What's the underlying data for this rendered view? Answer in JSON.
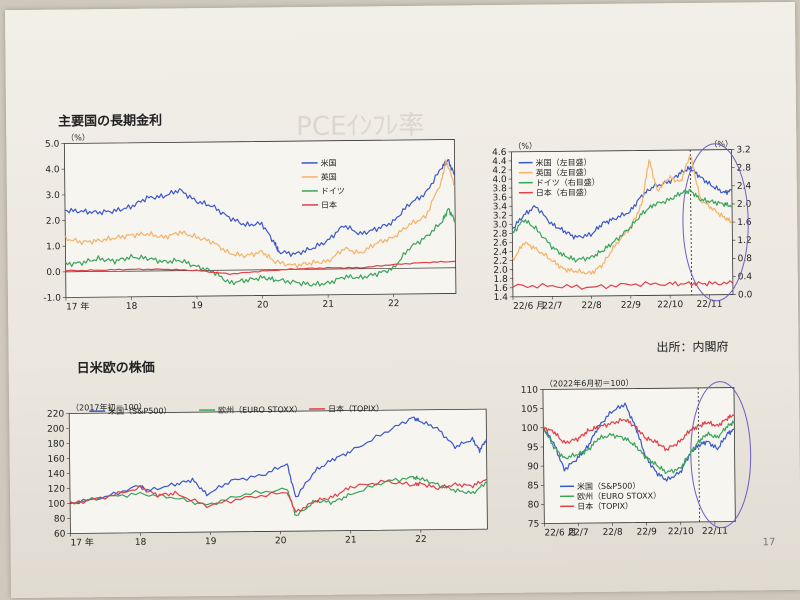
{
  "page": {
    "section1_title": "主要国の長期金利",
    "section2_title": "日米欧の株価",
    "source": "出所：内閣府",
    "page_number": "17"
  },
  "colors": {
    "us": "#3a58c8",
    "uk": "#f4b26a",
    "de": "#3aa35c",
    "jp": "#e0404a"
  },
  "chart_data": [
    {
      "id": "rates_long",
      "type": "line",
      "title": "",
      "unit": "（%）",
      "ylim": [
        -1.0,
        5.0
      ],
      "yticks": [
        "5.0",
        "4.0",
        "3.0",
        "2.0",
        "1.0",
        "0.0",
        "-1.0"
      ],
      "xlim": [
        2017.0,
        2022.95
      ],
      "xticks": [
        {
          "x": 2017.0,
          "label": "17 年"
        },
        {
          "x": 2018.0,
          "label": "18"
        },
        {
          "x": 2019.0,
          "label": "19"
        },
        {
          "x": 2020.0,
          "label": "20"
        },
        {
          "x": 2021.0,
          "label": "21"
        },
        {
          "x": 2022.0,
          "label": "22"
        }
      ],
      "zero_line": 0,
      "legend": [
        "米国",
        "英国",
        "ドイツ",
        "日本"
      ],
      "series": [
        {
          "name": "米国",
          "color": "#3a58c8",
          "x": [
            2017.0,
            2017.25,
            2017.5,
            2017.75,
            2018.0,
            2018.25,
            2018.5,
            2018.75,
            2019.0,
            2019.25,
            2019.5,
            2019.75,
            2020.0,
            2020.2,
            2020.25,
            2020.5,
            2020.75,
            2021.0,
            2021.25,
            2021.5,
            2021.75,
            2022.0,
            2022.25,
            2022.5,
            2022.75,
            2022.85,
            2022.95
          ],
          "y": [
            2.4,
            2.35,
            2.3,
            2.35,
            2.5,
            2.85,
            2.9,
            3.15,
            2.7,
            2.5,
            2.05,
            1.75,
            1.8,
            1.0,
            0.7,
            0.6,
            0.8,
            1.1,
            1.7,
            1.35,
            1.55,
            1.8,
            2.5,
            2.9,
            3.9,
            4.2,
            3.6
          ]
        },
        {
          "name": "英国",
          "color": "#f4b26a",
          "x": [
            2017.0,
            2017.25,
            2017.5,
            2017.75,
            2018.0,
            2018.25,
            2018.5,
            2018.75,
            2019.0,
            2019.25,
            2019.5,
            2019.75,
            2020.0,
            2020.2,
            2020.5,
            2020.75,
            2021.0,
            2021.25,
            2021.5,
            2021.75,
            2022.0,
            2022.25,
            2022.5,
            2022.75,
            2022.82,
            2022.95
          ],
          "y": [
            1.3,
            1.15,
            1.2,
            1.3,
            1.4,
            1.45,
            1.3,
            1.5,
            1.3,
            1.1,
            0.65,
            0.55,
            0.7,
            0.3,
            0.15,
            0.25,
            0.3,
            0.8,
            0.6,
            1.0,
            1.2,
            1.7,
            2.0,
            3.4,
            4.2,
            3.2
          ]
        },
        {
          "name": "ドイツ",
          "color": "#3aa35c",
          "x": [
            2017.0,
            2017.25,
            2017.5,
            2017.75,
            2018.0,
            2018.25,
            2018.5,
            2018.75,
            2019.0,
            2019.25,
            2019.5,
            2019.75,
            2020.0,
            2020.2,
            2020.5,
            2020.75,
            2021.0,
            2021.25,
            2021.5,
            2021.75,
            2022.0,
            2022.25,
            2022.5,
            2022.75,
            2022.85,
            2022.95
          ],
          "y": [
            0.3,
            0.35,
            0.5,
            0.4,
            0.55,
            0.5,
            0.35,
            0.4,
            0.15,
            -0.05,
            -0.5,
            -0.4,
            -0.3,
            -0.4,
            -0.5,
            -0.6,
            -0.55,
            -0.3,
            -0.35,
            -0.2,
            0.0,
            0.8,
            1.2,
            1.8,
            2.3,
            1.8
          ]
        },
        {
          "name": "日本",
          "color": "#e0404a",
          "x": [
            2017.0,
            2017.5,
            2018.0,
            2018.5,
            2019.0,
            2019.5,
            2020.0,
            2020.5,
            2021.0,
            2021.5,
            2022.0,
            2022.5,
            2022.95
          ],
          "y": [
            0.05,
            0.05,
            0.07,
            0.06,
            0.0,
            -0.15,
            -0.05,
            0.02,
            0.05,
            0.04,
            0.15,
            0.22,
            0.25
          ]
        }
      ]
    },
    {
      "id": "rates_recent",
      "type": "line",
      "title": "",
      "unit_left": "（%）",
      "unit_right": "（%）",
      "ylim_left": [
        1.4,
        4.6
      ],
      "yticks_left": [
        "4.6",
        "4.4",
        "4.2",
        "4.0",
        "3.8",
        "3.6",
        "3.4",
        "3.2",
        "3.0",
        "2.8",
        "2.6",
        "2.4",
        "2.2",
        "2.0",
        "1.8",
        "1.6",
        "1.4"
      ],
      "ylim_right": [
        0.0,
        3.2
      ],
      "yticks_right": [
        "3.2",
        "2.8",
        "2.4",
        "2.0",
        "1.6",
        "1.2",
        "0.8",
        "0.4",
        "0.0"
      ],
      "xlim": [
        0,
        5.6
      ],
      "xticks": [
        {
          "x": 0,
          "label": "22/6 月"
        },
        {
          "x": 1,
          "label": "22/7"
        },
        {
          "x": 2,
          "label": "22/8"
        },
        {
          "x": 3,
          "label": "22/9"
        },
        {
          "x": 4,
          "label": "22/10"
        },
        {
          "x": 5,
          "label": "22/11"
        }
      ],
      "vline_x": 4.55,
      "legend": [
        "米国（左目盛）",
        "英国（左目盛）",
        "ドイツ（右目盛）",
        "日本（右目盛）"
      ],
      "series": [
        {
          "name": "米国（左目盛）",
          "axis": "left",
          "color": "#3a58c8",
          "x": [
            0,
            0.3,
            0.6,
            1,
            1.3,
            1.6,
            2,
            2.3,
            2.6,
            3,
            3.3,
            3.6,
            4,
            4.3,
            4.55,
            4.8,
            5.1,
            5.4,
            5.6
          ],
          "y": [
            2.9,
            3.2,
            3.4,
            3.0,
            2.85,
            2.7,
            2.75,
            3.0,
            3.1,
            3.25,
            3.6,
            3.8,
            3.9,
            4.1,
            4.2,
            4.0,
            3.8,
            3.65,
            3.7
          ]
        },
        {
          "name": "英国（左目盛）",
          "axis": "left",
          "color": "#f4b26a",
          "x": [
            0,
            0.3,
            0.6,
            1,
            1.3,
            1.6,
            2,
            2.3,
            2.6,
            3,
            3.3,
            3.5,
            3.7,
            4,
            4.3,
            4.55,
            4.8,
            5.1,
            5.4,
            5.6
          ],
          "y": [
            2.2,
            2.6,
            2.45,
            2.2,
            2.0,
            1.95,
            1.9,
            2.1,
            2.5,
            2.9,
            3.4,
            4.4,
            3.7,
            4.0,
            3.9,
            4.5,
            3.5,
            3.3,
            3.1,
            3.0
          ]
        },
        {
          "name": "ドイツ（右目盛）",
          "axis": "right",
          "color": "#3aa35c",
          "x": [
            0,
            0.3,
            0.6,
            1,
            1.3,
            1.6,
            2,
            2.3,
            2.6,
            3,
            3.3,
            3.6,
            4,
            4.3,
            4.55,
            4.8,
            5.1,
            5.4,
            5.6
          ],
          "y": [
            1.4,
            1.7,
            1.5,
            1.1,
            0.9,
            0.8,
            0.85,
            1.0,
            1.2,
            1.5,
            1.8,
            2.0,
            2.1,
            2.25,
            2.3,
            2.1,
            2.05,
            2.0,
            1.95
          ]
        },
        {
          "name": "日本（右目盛）",
          "axis": "right",
          "color": "#e0404a",
          "x": [
            0,
            1,
            2,
            3,
            4,
            4.55,
            5,
            5.6
          ],
          "y": [
            0.24,
            0.23,
            0.19,
            0.25,
            0.25,
            0.25,
            0.25,
            0.25
          ]
        }
      ]
    },
    {
      "id": "stocks_long",
      "type": "line",
      "title": "",
      "unit": "（2017年初＝100）",
      "ylim": [
        60,
        220
      ],
      "yticks": [
        "220",
        "200",
        "180",
        "160",
        "140",
        "120",
        "100",
        "80",
        "60"
      ],
      "xlim": [
        2017.0,
        2022.95
      ],
      "xticks": [
        {
          "x": 2017.0,
          "label": "17 年"
        },
        {
          "x": 2018.0,
          "label": "18"
        },
        {
          "x": 2019.0,
          "label": "19"
        },
        {
          "x": 2020.0,
          "label": "20"
        },
        {
          "x": 2021.0,
          "label": "21"
        },
        {
          "x": 2022.0,
          "label": "22"
        }
      ],
      "legend": [
        "米国（S&P500）",
        "欧州（EURO STOXX）",
        "日本（TOPIX）"
      ],
      "series": [
        {
          "name": "米国（S&P500）",
          "color": "#3a58c8",
          "x": [
            2017.0,
            2017.5,
            2018.0,
            2018.1,
            2018.5,
            2018.75,
            2018.95,
            2019.3,
            2019.75,
            2020.1,
            2020.22,
            2020.5,
            2020.75,
            2021.0,
            2021.5,
            2021.9,
            2022.0,
            2022.25,
            2022.5,
            2022.75,
            2022.85,
            2022.95
          ],
          "y": [
            100,
            108,
            123,
            116,
            124,
            130,
            110,
            128,
            135,
            150,
            105,
            140,
            155,
            165,
            190,
            210,
            205,
            195,
            170,
            180,
            165,
            180
          ]
        },
        {
          "name": "欧州（EURO STOXX）",
          "color": "#3aa35c",
          "x": [
            2017.0,
            2017.5,
            2018.0,
            2018.5,
            2018.95,
            2019.5,
            2020.1,
            2020.22,
            2020.5,
            2020.75,
            2021.0,
            2021.5,
            2021.9,
            2022.0,
            2022.25,
            2022.5,
            2022.75,
            2022.95
          ],
          "y": [
            100,
            108,
            112,
            106,
            96,
            110,
            116,
            80,
            100,
            98,
            108,
            125,
            130,
            128,
            120,
            112,
            108,
            123
          ]
        },
        {
          "name": "日本（TOPIX）",
          "color": "#e0404a",
          "x": [
            2017.0,
            2017.5,
            2018.0,
            2018.25,
            2018.5,
            2018.95,
            2019.5,
            2020.1,
            2020.22,
            2020.5,
            2020.75,
            2021.0,
            2021.5,
            2021.9,
            2022.0,
            2022.25,
            2022.5,
            2022.75,
            2022.95
          ],
          "y": [
            100,
            108,
            120,
            110,
            112,
            95,
            105,
            112,
            85,
            100,
            105,
            118,
            125,
            120,
            122,
            115,
            120,
            118,
            127
          ]
        }
      ]
    },
    {
      "id": "stocks_recent",
      "type": "line",
      "title": "",
      "unit": "（2022年6月初＝100）",
      "ylim": [
        75,
        110
      ],
      "yticks": [
        "110",
        "105",
        "100",
        "95",
        "90",
        "85",
        "80",
        "75"
      ],
      "xlim": [
        0,
        5.6
      ],
      "xticks": [
        {
          "x": 0,
          "label": "22/6 月"
        },
        {
          "x": 1,
          "label": "22/7"
        },
        {
          "x": 2,
          "label": "22/8"
        },
        {
          "x": 3,
          "label": "22/9"
        },
        {
          "x": 4,
          "label": "22/10"
        },
        {
          "x": 5,
          "label": "22/11"
        }
      ],
      "vline_x": 4.55,
      "legend": [
        "米国（S&P500）",
        "欧州（EURO STOXX）",
        "日本（TOPIX）"
      ],
      "series": [
        {
          "name": "米国（S&P500）",
          "color": "#3a58c8",
          "x": [
            0,
            0.3,
            0.6,
            1,
            1.3,
            1.6,
            2,
            2.4,
            2.7,
            3,
            3.3,
            3.6,
            4,
            4.3,
            4.55,
            4.8,
            5.1,
            5.4,
            5.6
          ],
          "y": [
            100,
            96,
            89,
            92,
            95,
            100,
            104,
            106,
            100,
            92,
            88,
            86,
            88,
            93,
            95,
            96,
            94,
            98,
            99
          ]
        },
        {
          "name": "欧州（EURO STOXX）",
          "color": "#3aa35c",
          "x": [
            0,
            0.3,
            0.6,
            1,
            1.3,
            1.6,
            2,
            2.4,
            2.7,
            3,
            3.3,
            3.6,
            4,
            4.3,
            4.55,
            4.8,
            5.1,
            5.4,
            5.6
          ],
          "y": [
            100,
            95,
            92,
            93,
            94,
            97,
            98,
            97,
            95,
            92,
            90,
            88,
            89,
            93,
            96,
            98,
            97,
            100,
            101
          ]
        },
        {
          "name": "日本（TOPIX）",
          "color": "#e0404a",
          "x": [
            0,
            0.3,
            0.6,
            1,
            1.3,
            1.6,
            2,
            2.4,
            2.7,
            3,
            3.3,
            3.6,
            4,
            4.3,
            4.55,
            4.8,
            5.1,
            5.4,
            5.6
          ],
          "y": [
            100,
            99,
            96,
            97,
            99,
            100,
            101,
            102,
            100,
            97,
            96,
            94,
            96,
            99,
            100,
            101,
            100,
            102,
            103
          ]
        }
      ]
    }
  ]
}
